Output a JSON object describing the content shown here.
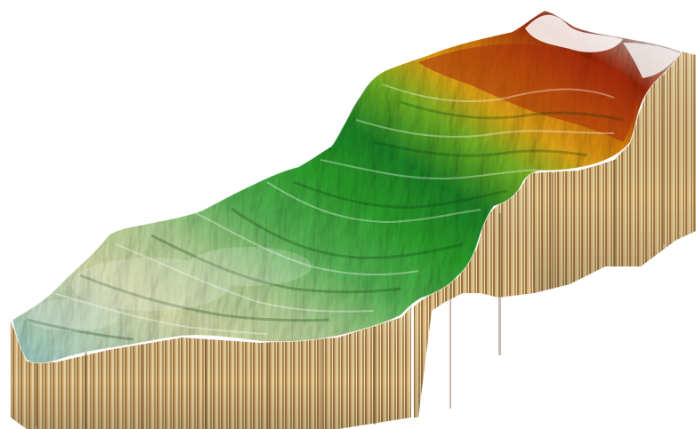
{
  "scene": {
    "kind": "3d-terrain-block",
    "background_color": "#ffffff",
    "elevation_ramp": [
      "#8fd3e0",
      "#e6ecb8",
      "#2faa2f",
      "#1f8a2a",
      "#f2b21a",
      "#e07a10",
      "#a82a0a",
      "#ffffff"
    ],
    "side_wall_colors": [
      "#e9d3a0",
      "#c9a46a",
      "#9a7440",
      "#6f4f28"
    ],
    "relief_features": [
      "ridge-lines",
      "valley-channels",
      "hillshade"
    ]
  }
}
